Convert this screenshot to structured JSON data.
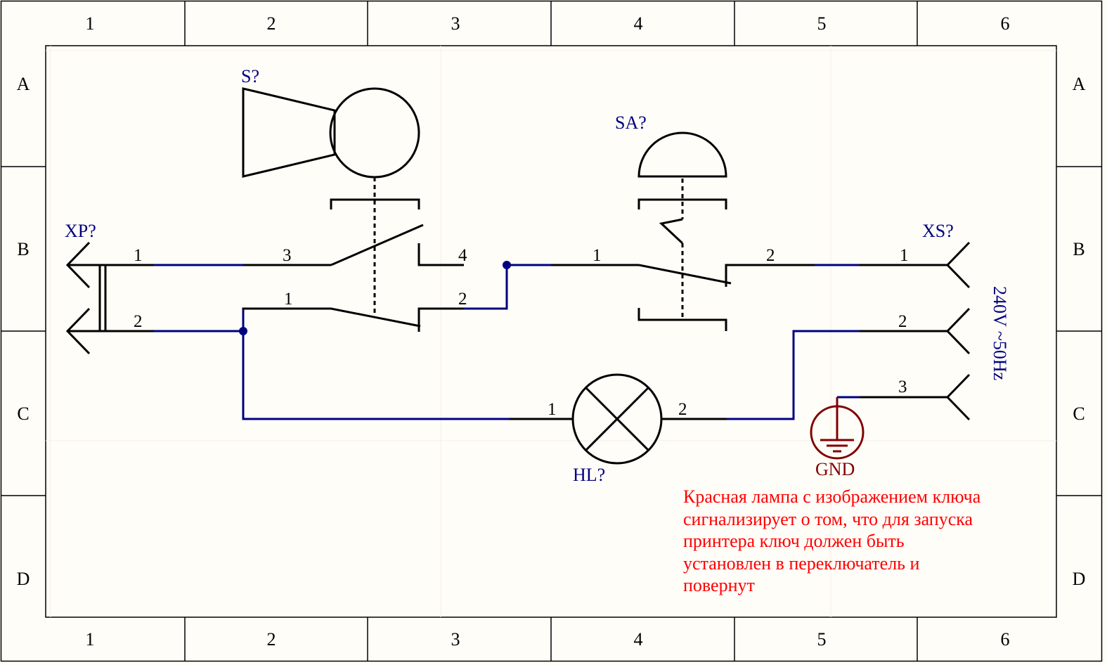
{
  "frame": {
    "columns": [
      "1",
      "2",
      "3",
      "4",
      "5",
      "6"
    ],
    "rows": [
      "A",
      "B",
      "C",
      "D"
    ]
  },
  "designators": {
    "xp": "XP?",
    "s": "S?",
    "sa": "SA?",
    "xs": "XS?",
    "hl": "HL?",
    "gnd": "GND"
  },
  "pins": {
    "xp1": "1",
    "xp2": "2",
    "s3": "3",
    "s4": "4",
    "s1": "1",
    "s2": "2",
    "sa1": "1",
    "sa2": "2",
    "xs1": "1",
    "xs2": "2",
    "xs3": "3",
    "hl1": "1",
    "hl2": "2"
  },
  "supply_label": "240V ~50Hz",
  "note": [
    "Красная лампа с изображением ключа",
    "сигнализирует о том, что для запуска",
    "принтера ключ должен быть",
    "установлен в переключатель и",
    "повернут"
  ],
  "colors": {
    "wire": "#000080",
    "component": "#000000",
    "ground": "#800000",
    "note": "#ff0000",
    "paper": "#fffdf8"
  }
}
